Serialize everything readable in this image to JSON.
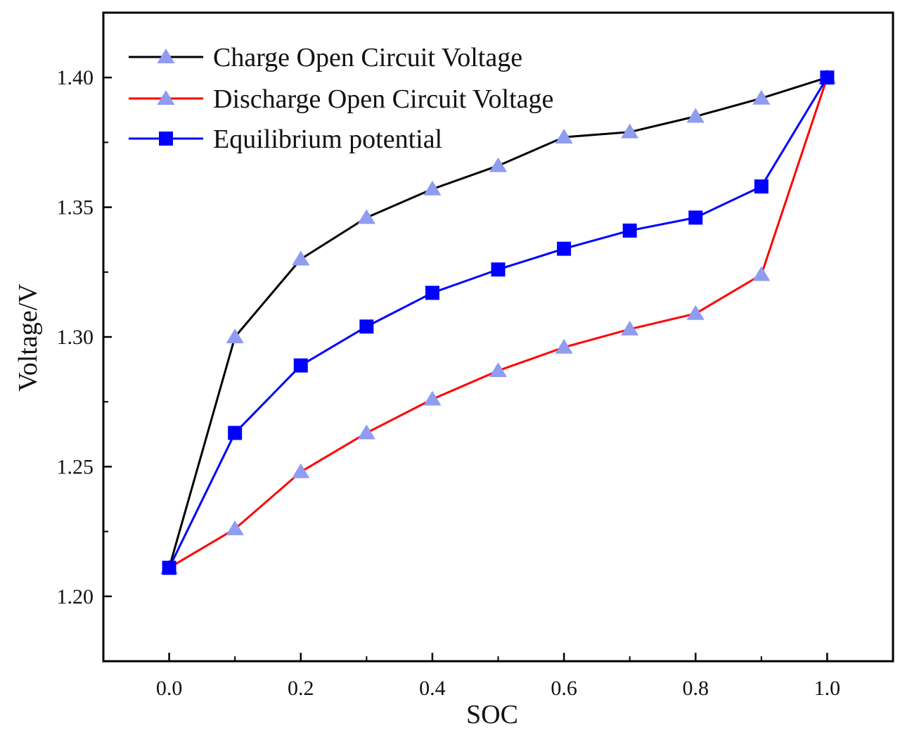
{
  "chart_data": {
    "type": "line",
    "title": "",
    "xlabel": "SOC",
    "ylabel": "Voltage/V",
    "xlim": [
      -0.1,
      1.1
    ],
    "ylim": [
      1.175,
      1.425
    ],
    "xticks": [
      "0.0",
      "0.2",
      "0.4",
      "0.6",
      "0.8",
      "1.0"
    ],
    "yticks": [
      "1.20",
      "1.25",
      "1.30",
      "1.35",
      "1.40"
    ],
    "grid": false,
    "legend_position": "top-left",
    "x": [
      0.0,
      0.1,
      0.2,
      0.3,
      0.4,
      0.5,
      0.6,
      0.7,
      0.8,
      0.9,
      1.0
    ],
    "series": [
      {
        "name": "Charge Open Circuit Voltage",
        "line_color": "#000000",
        "marker": "triangle",
        "marker_color": "#8f9cf0",
        "values": [
          1.211,
          1.3,
          1.33,
          1.346,
          1.357,
          1.366,
          1.377,
          1.379,
          1.385,
          1.392,
          1.4
        ]
      },
      {
        "name": "Discharge Open Circuit Voltage",
        "line_color": "#ff0000",
        "marker": "triangle",
        "marker_color": "#8f9cf0",
        "values": [
          1.211,
          1.226,
          1.248,
          1.263,
          1.276,
          1.287,
          1.296,
          1.303,
          1.309,
          1.324,
          1.4
        ]
      },
      {
        "name": "Equilibrium potential",
        "line_color": "#0000ff",
        "marker": "square",
        "marker_color": "#0000ff",
        "values": [
          1.211,
          1.263,
          1.289,
          1.304,
          1.317,
          1.326,
          1.334,
          1.341,
          1.346,
          1.358,
          1.4
        ]
      }
    ]
  }
}
